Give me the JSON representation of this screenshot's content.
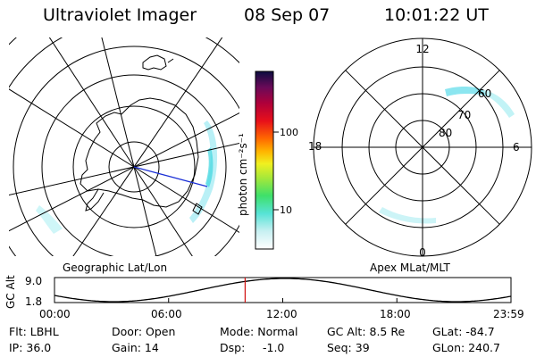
{
  "header": {
    "instrument": "Ultraviolet Imager",
    "date": "08 Sep 07",
    "time": "10:01:22 UT"
  },
  "geo_panel": {
    "caption": "Geographic Lat/Lon"
  },
  "apex_panel": {
    "caption": "Apex MLat/MLT",
    "mlt_labels": {
      "top": "12",
      "bottom": "0",
      "left": "18",
      "right": "6"
    },
    "lat_labels": [
      "60",
      "70",
      "80"
    ]
  },
  "colorbar": {
    "unit_label": "photon cm⁻²s⁻¹",
    "tick_labels": [
      "100",
      "10"
    ]
  },
  "altitude_plot": {
    "ylabel": "GC Alt",
    "y_ticks": [
      "9.0",
      "1.8"
    ],
    "x_ticks": [
      "00:00",
      "06:00",
      "12:00",
      "18:00",
      "23:59"
    ],
    "current_time_fraction": 0.4176
  },
  "info": {
    "flt": "Flt: LBHL",
    "door": "Door: Open",
    "mode": "Mode: Normal",
    "gc_alt": "GC Alt: 8.5 Re",
    "glat": "GLat: -84.7",
    "ip": "IP: 36.0",
    "gain": "Gain: 14",
    "dsp_label": "Dsp:",
    "dsp_value": "-1.0",
    "seq": "Seq: 39",
    "glon": "GLon: 240.7"
  },
  "colors": {
    "aurora": "#7fe3ee",
    "track": "#1a2fd6",
    "time_marker": "#d01010"
  }
}
